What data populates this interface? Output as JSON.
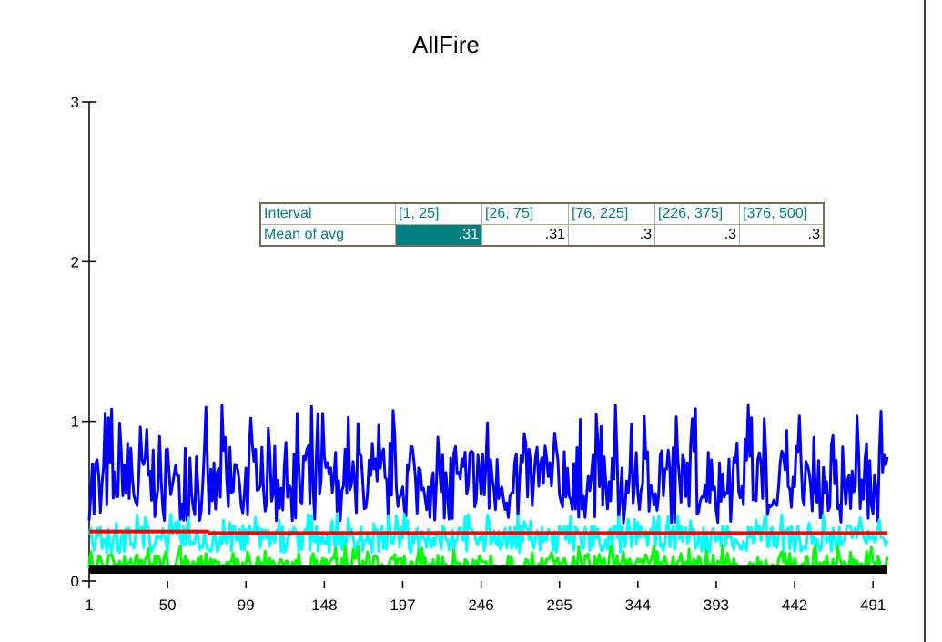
{
  "chart_data": {
    "type": "line",
    "title": "AllFire",
    "xlabel": "",
    "ylabel": "",
    "xlim": [
      1,
      500
    ],
    "ylim": [
      0,
      3
    ],
    "x_ticks": [
      "1",
      "50",
      "99",
      "148",
      "197",
      "246",
      "295",
      "344",
      "393",
      "442",
      "491"
    ],
    "y_ticks": [
      "0",
      "1",
      "2",
      "3"
    ],
    "grid": false,
    "series": [
      {
        "color": "#0000ff",
        "approx_range": [
          0.3,
          1.1
        ],
        "typical": 0.6,
        "peak_x": 413,
        "peak_y": 1.1
      },
      {
        "color": "#00ffff",
        "approx_range": [
          0.15,
          0.42
        ],
        "typical": 0.28
      },
      {
        "color": "#00ff00",
        "approx_range": [
          0.05,
          0.22
        ],
        "typical": 0.1
      },
      {
        "color": "#000000",
        "approx_range": [
          0.0,
          0.05
        ],
        "typical": 0.02
      },
      {
        "color": "#ff0000",
        "values_by_interval": [
          0.31,
          0.31,
          0.3,
          0.3,
          0.3
        ]
      }
    ]
  },
  "table": {
    "row1_label": "Interval",
    "row2_label": "Mean of avg",
    "intervals": [
      "[1, 25]",
      "[26, 75]",
      "[76, 225]",
      "[226, 375]",
      "[376, 500]"
    ],
    "means": [
      ".31",
      ".31",
      ".3",
      ".3",
      ".3"
    ],
    "selected_index": 0
  }
}
